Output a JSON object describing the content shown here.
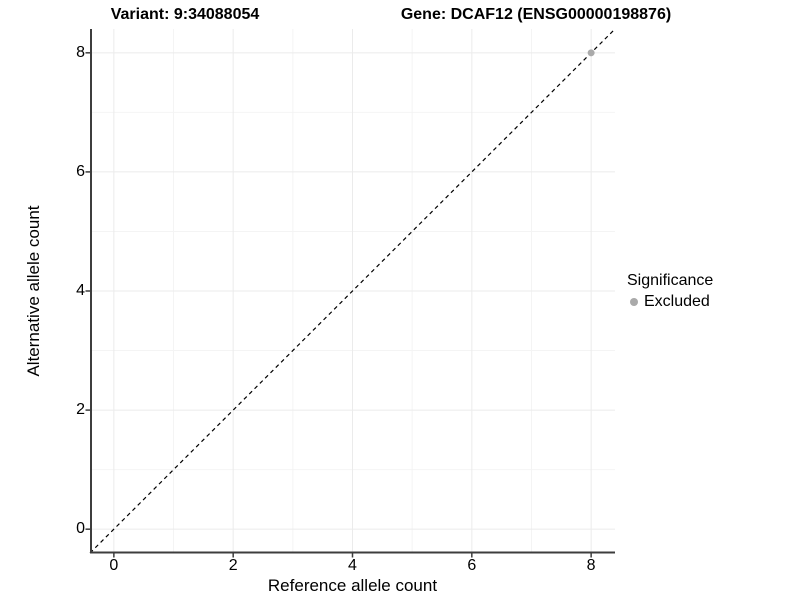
{
  "titles": {
    "variant": "Variant: 9:34088054",
    "gene": "Gene: DCAF12 (ENSG00000198876)"
  },
  "axes": {
    "x": {
      "label": "Reference allele count",
      "ticks": [
        0,
        2,
        4,
        6,
        8
      ],
      "minor_ticks": [
        1,
        3,
        5,
        7
      ]
    },
    "y": {
      "label": "Alternative allele count",
      "ticks": [
        0,
        2,
        4,
        6,
        8
      ],
      "minor_ticks": [
        1,
        3,
        5,
        7
      ]
    }
  },
  "legend": {
    "title": "Significance",
    "items": [
      {
        "label": "Excluded",
        "color": "#aaaaaa"
      }
    ]
  },
  "chart_data": {
    "type": "scatter",
    "title": "Variant: 9:34088054 | Gene: DCAF12 (ENSG00000198876)",
    "xlabel": "Reference allele count",
    "ylabel": "Alternative allele count",
    "xlim": [
      -0.4,
      8.4
    ],
    "ylim": [
      -0.4,
      8.4
    ],
    "x_ticks": [
      0,
      2,
      4,
      6,
      8
    ],
    "y_ticks": [
      0,
      2,
      4,
      6,
      8
    ],
    "grid": true,
    "legend_position": "right",
    "series": [
      {
        "name": "Excluded",
        "color": "#aaaaaa",
        "points": [
          {
            "x": 8,
            "y": 8
          }
        ]
      }
    ],
    "reference_line": {
      "type": "abline",
      "slope": 1,
      "intercept": 0,
      "style": "dashed",
      "color": "#000000"
    }
  },
  "colors": {
    "grid_major": "#ebebeb",
    "grid_minor": "#f4f4f4",
    "axis_line": "#3d3d3d",
    "background": "#ffffff",
    "point": "#aaaaaa",
    "dashed_line": "#000000"
  }
}
